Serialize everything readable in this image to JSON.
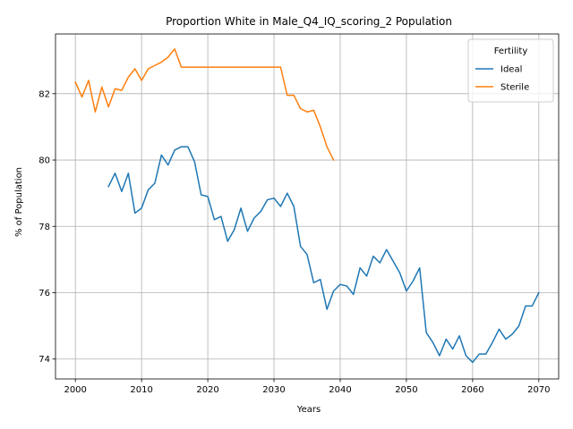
{
  "chart_data": {
    "type": "line",
    "title": "Proportion White in Male_Q4_IQ_scoring_2 Population",
    "xlabel": "Years",
    "ylabel": "% of Population",
    "xlim": [
      1997,
      2073
    ],
    "ylim": [
      73.4,
      83.8
    ],
    "xticks": [
      2000,
      2010,
      2020,
      2030,
      2040,
      2050,
      2060,
      2070
    ],
    "yticks": [
      74,
      76,
      78,
      80,
      82
    ],
    "grid": true,
    "legend": {
      "title": "Fertility",
      "placement": "top-right"
    },
    "series": [
      {
        "name": "Ideal",
        "color": "#1f77b4",
        "x": [
          2005,
          2006,
          2007,
          2008,
          2009,
          2010,
          2011,
          2012,
          2013,
          2014,
          2015,
          2016,
          2017,
          2018,
          2019,
          2020,
          2021,
          2022,
          2023,
          2024,
          2025,
          2026,
          2027,
          2028,
          2029,
          2030,
          2031,
          2032,
          2033,
          2034,
          2035,
          2036,
          2037,
          2038,
          2039,
          2040,
          2041,
          2042,
          2043,
          2044,
          2045,
          2046,
          2047,
          2048,
          2049,
          2050,
          2051,
          2052,
          2053,
          2054,
          2055,
          2056,
          2057,
          2058,
          2059,
          2060,
          2061,
          2062,
          2063,
          2064,
          2065,
          2066,
          2067,
          2068,
          2069,
          2070
        ],
        "y": [
          79.2,
          79.6,
          79.05,
          79.6,
          78.4,
          78.55,
          79.1,
          79.3,
          80.15,
          79.85,
          80.3,
          80.4,
          80.4,
          79.95,
          78.95,
          78.9,
          78.2,
          78.3,
          77.55,
          77.9,
          78.55,
          77.85,
          78.25,
          78.45,
          78.8,
          78.85,
          78.6,
          79.0,
          78.6,
          77.4,
          77.15,
          76.3,
          76.4,
          75.5,
          76.05,
          76.25,
          76.2,
          75.95,
          76.75,
          76.5,
          77.1,
          76.9,
          77.3,
          76.95,
          76.6,
          76.05,
          76.35,
          76.75,
          74.8,
          74.5,
          74.1,
          74.6,
          74.3,
          74.7,
          74.1,
          73.9,
          74.15,
          74.15,
          74.5,
          74.9,
          74.6,
          74.75,
          75.0,
          75.6,
          75.6,
          76.0
        ]
      },
      {
        "name": "Sterile",
        "color": "#ff7f0e",
        "x": [
          2000,
          2001,
          2002,
          2003,
          2004,
          2005,
          2006,
          2007,
          2008,
          2009,
          2010,
          2011,
          2012,
          2013,
          2014,
          2015,
          2016,
          2017,
          2018,
          2019,
          2020,
          2021,
          2022,
          2023,
          2024,
          2025,
          2026,
          2027,
          2028,
          2029,
          2030,
          2031,
          2032,
          2033,
          2034,
          2035,
          2036,
          2037,
          2038,
          2039
        ],
        "y": [
          82.35,
          81.9,
          82.4,
          81.45,
          82.2,
          81.6,
          82.15,
          82.1,
          82.5,
          82.75,
          82.4,
          82.75,
          82.85,
          82.95,
          83.1,
          83.35,
          82.8,
          82.8,
          82.8,
          82.8,
          82.8,
          82.8,
          82.8,
          82.8,
          82.8,
          82.8,
          82.8,
          82.8,
          82.8,
          82.8,
          82.8,
          82.8,
          81.95,
          81.95,
          81.55,
          81.45,
          81.5,
          81.0,
          80.4,
          80.0
        ]
      }
    ]
  }
}
